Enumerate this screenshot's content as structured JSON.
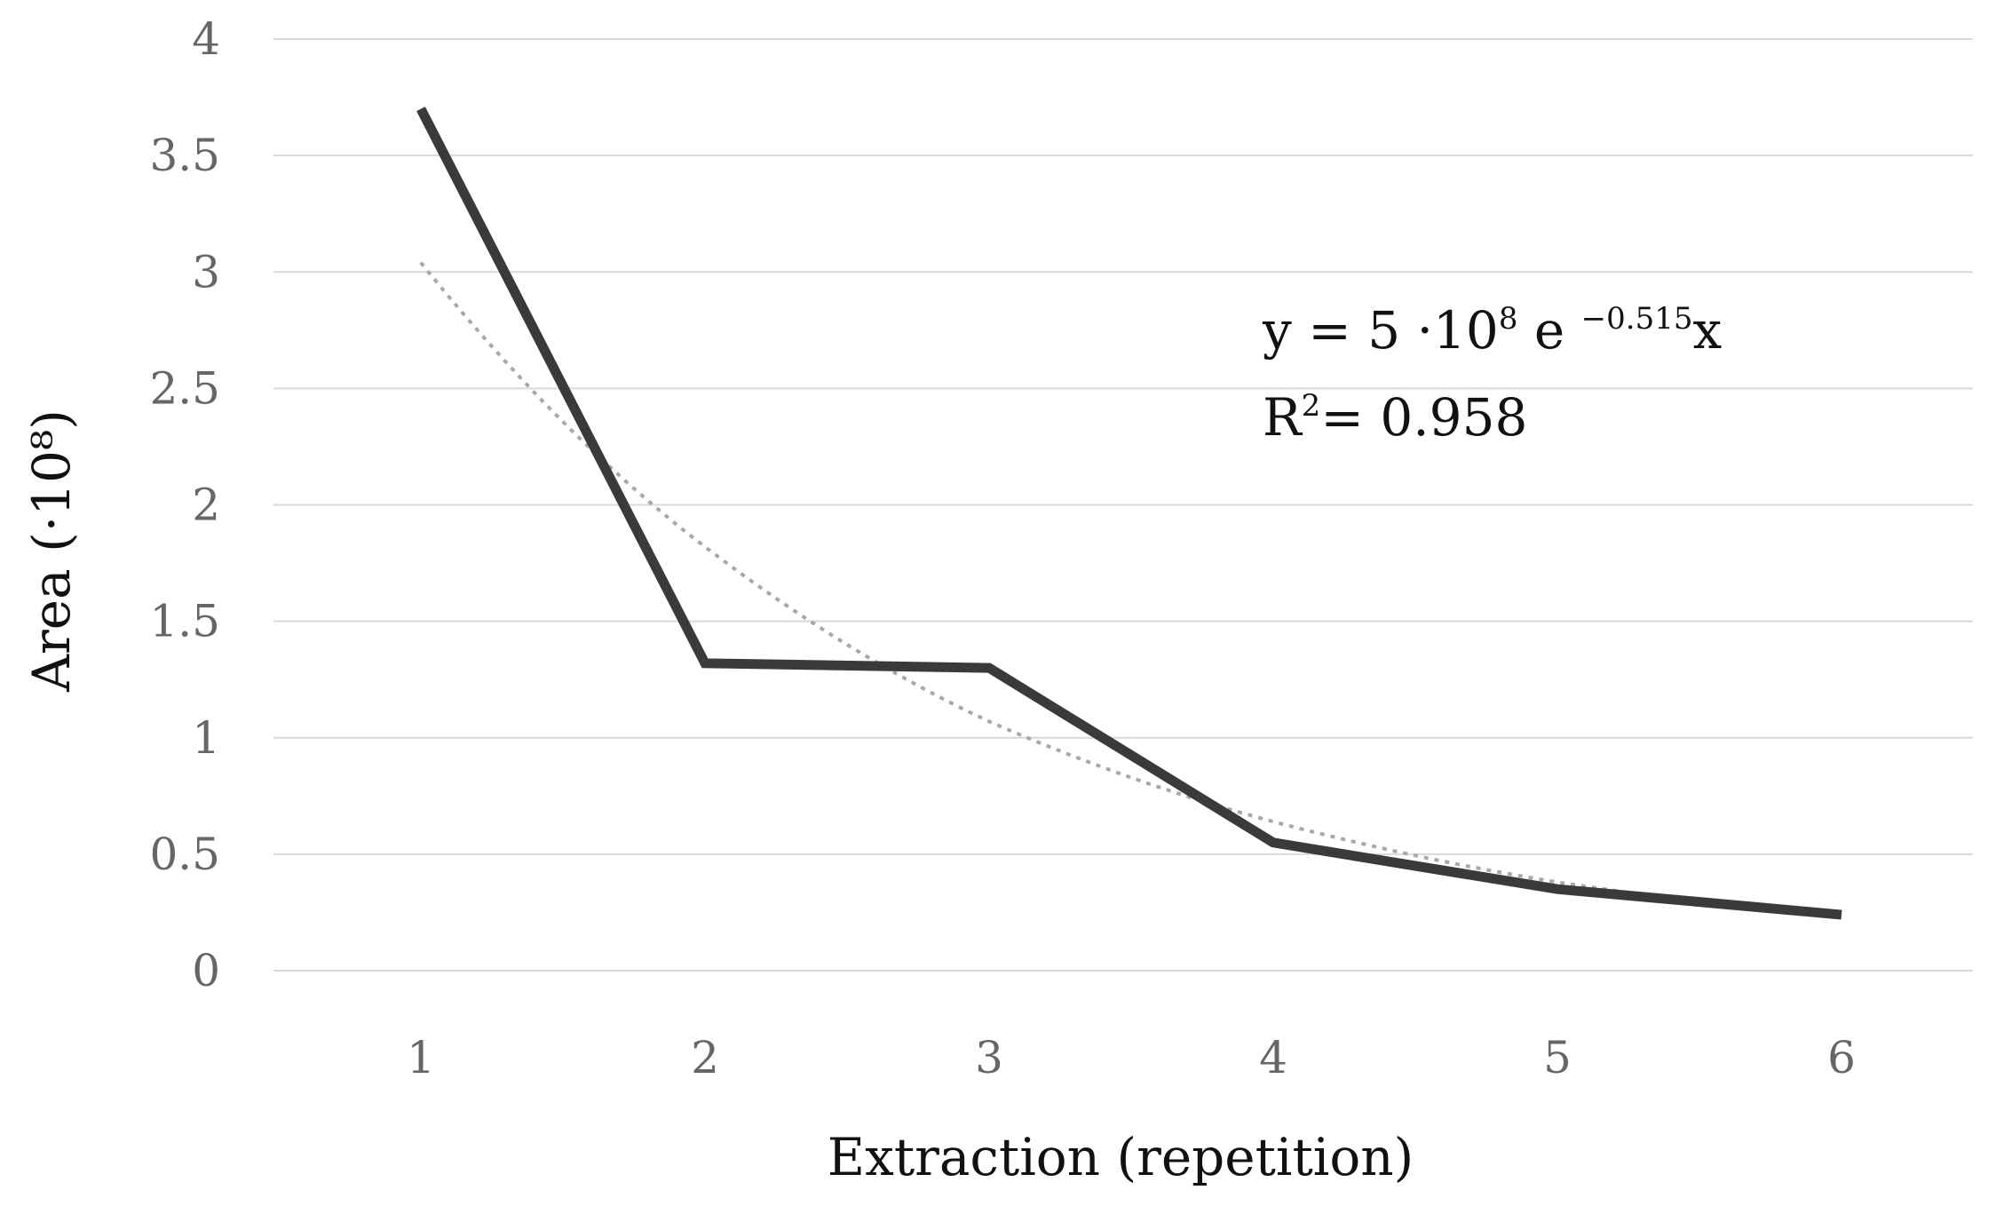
{
  "chart_data": {
    "type": "line",
    "xlabel": "Extraction (repetition)",
    "ylabel": "Area (·10⁸)",
    "categories": [
      "1",
      "2",
      "3",
      "4",
      "5",
      "6"
    ],
    "y_ticks": [
      "0",
      "0.5",
      "1",
      "1.5",
      "2",
      "2.5",
      "3",
      "3.5",
      "4"
    ],
    "ylim": [
      0,
      4
    ],
    "grid": "horizontal",
    "series": [
      {
        "values": [
          3.7,
          1.32,
          1.3,
          0.55,
          0.35,
          0.24
        ],
        "color": "#3a3a3a",
        "style": "solid"
      },
      {
        "values": [
          3.04,
          1.82,
          1.07,
          0.64,
          0.38,
          0.23
        ],
        "color": "#a8a8a8",
        "style": "dotted",
        "role": "trendline"
      }
    ],
    "equation": {
      "y_prefix": "y = 5 ·10",
      "y_exp": "8",
      "e_text": " e ",
      "e_exp": "−0.515",
      "x_text": "x",
      "r_prefix": "R",
      "r_exp": "2",
      "r_value": "= 0.958"
    }
  }
}
